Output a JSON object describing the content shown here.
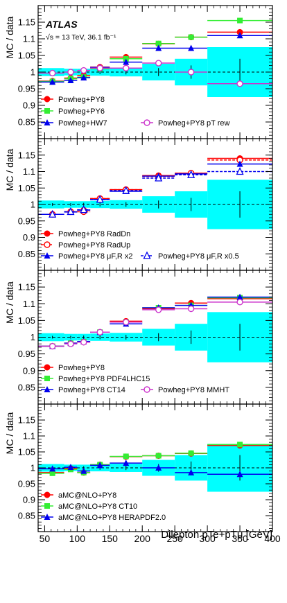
{
  "chart_data": {
    "type": "scatter",
    "experiment_label": "ATLAS",
    "energy_label": "√s = 13 TeV, 36.1 fb⁻¹",
    "ylabel": "MC / data",
    "xlabel": "Dilepton pTe+pTμ [GeV]",
    "xlim": [
      40,
      400
    ],
    "ylim": [
      0.8,
      1.2
    ],
    "x_ticks": [
      "50",
      "100",
      "150",
      "200",
      "250",
      "300",
      "350",
      "400"
    ],
    "y_ticks": [
      "0.85",
      "0.9",
      "0.95",
      "1",
      "1.05",
      "1.1",
      "1.15"
    ],
    "bin_edges": [
      40,
      80,
      100,
      120,
      150,
      200,
      250,
      300,
      400
    ],
    "bin_centers": [
      62,
      90,
      110,
      135,
      175,
      225,
      275,
      350
    ],
    "data_uncertainty_band": [
      0.012,
      0.01,
      0.01,
      0.011,
      0.013,
      0.025,
      0.04,
      0.075
    ],
    "data_stat_error": [
      0.004,
      0.004,
      0.005,
      0.006,
      0.007,
      0.012,
      0.02,
      0.04
    ],
    "colors": {
      "band": "#00ffff",
      "red": "#ff0000",
      "green": "#33ee33",
      "blue": "#0000ee",
      "magenta": "#cc33cc"
    },
    "panels": [
      {
        "series": [
          {
            "name": "Powheg+PY8",
            "color": "red",
            "marker": "circle",
            "line": "solid",
            "values": [
              0.973,
              0.982,
              0.99,
              1.015,
              1.045,
              1.085,
              1.105,
              1.12
            ]
          },
          {
            "name": "Powheg+PY6",
            "color": "green",
            "marker": "square",
            "line": "solid",
            "values": [
              0.972,
              0.98,
              0.985,
              1.01,
              1.04,
              1.086,
              1.105,
              1.155
            ]
          },
          {
            "name": "Powheg+HW7",
            "color": "blue",
            "marker": "triangle",
            "line": "solid",
            "values": [
              0.97,
              0.975,
              0.983,
              1.014,
              1.03,
              1.072,
              1.072,
              1.11
            ]
          },
          {
            "name": "Powheg+PY8 pT rew",
            "color": "magenta",
            "marker": "circle-open",
            "line": "solid",
            "values": [
              0.997,
              1.0,
              1.005,
              1.012,
              1.012,
              1.027,
              1.0,
              0.965
            ]
          }
        ]
      },
      {
        "series": [
          {
            "name": "Powheg+PY8 RadDn",
            "color": "red",
            "marker": "circle",
            "line": "solid",
            "values": [
              0.97,
              0.978,
              0.983,
              1.018,
              1.045,
              1.088,
              1.095,
              1.14
            ]
          },
          {
            "name": "Powheg+PY8 RadUp",
            "color": "red",
            "marker": "circle-open",
            "line": "dashed",
            "values": [
              0.97,
              0.978,
              0.978,
              1.018,
              1.045,
              1.085,
              1.095,
              1.135
            ]
          },
          {
            "name": "Powheg+PY8 μF,R x2",
            "color": "blue",
            "marker": "triangle",
            "line": "solid",
            "values": [
              0.97,
              0.977,
              0.983,
              1.015,
              1.04,
              1.086,
              1.093,
              1.123
            ]
          },
          {
            "name": "Powheg+PY8 μF,R x0.5",
            "color": "blue",
            "marker": "triangle-open",
            "line": "dashed",
            "values": [
              0.97,
              0.978,
              0.984,
              1.015,
              1.042,
              1.08,
              1.09,
              1.1
            ]
          }
        ]
      },
      {
        "series": [
          {
            "name": "Powheg+PY8",
            "color": "red",
            "marker": "circle",
            "line": "solid",
            "values": [
              0.973,
              0.982,
              0.985,
              1.015,
              1.048,
              1.085,
              1.102,
              1.115
            ]
          },
          {
            "name": "Powheg+PY8 PDF4LHC15",
            "color": "green",
            "marker": "square",
            "line": "solid",
            "values": [
              0.973,
              0.982,
              0.987,
              1.015,
              1.045,
              1.088,
              1.095,
              1.118
            ]
          },
          {
            "name": "Powheg+PY8 CT14",
            "color": "blue",
            "marker": "triangle",
            "line": "solid",
            "values": [
              0.973,
              0.982,
              0.987,
              1.015,
              1.04,
              1.088,
              1.095,
              1.12
            ]
          },
          {
            "name": "Powheg+PY8 MMHT",
            "color": "magenta",
            "marker": "circle-open",
            "line": "solid",
            "values": [
              0.973,
              0.98,
              0.985,
              1.015,
              1.045,
              1.082,
              1.085,
              1.105
            ]
          }
        ]
      },
      {
        "series": [
          {
            "name": "aMC@NLO+PY8",
            "color": "red",
            "marker": "circle",
            "line": "solid",
            "values": [
              0.985,
              0.998,
              0.985,
              1.01,
              1.035,
              1.038,
              1.045,
              1.07
            ]
          },
          {
            "name": "aMC@NLO+PY8 CT10",
            "color": "green",
            "marker": "square",
            "line": "solid",
            "values": [
              0.983,
              0.995,
              0.985,
              1.01,
              1.036,
              1.038,
              1.046,
              1.073
            ]
          },
          {
            "name": "aMC@NLO+PY8 HERAPDF2.0",
            "color": "blue",
            "marker": "triangle",
            "line": "solid",
            "values": [
              0.997,
              1.002,
              0.99,
              1.008,
              1.015,
              1.0,
              0.985,
              0.98
            ]
          }
        ]
      }
    ]
  }
}
